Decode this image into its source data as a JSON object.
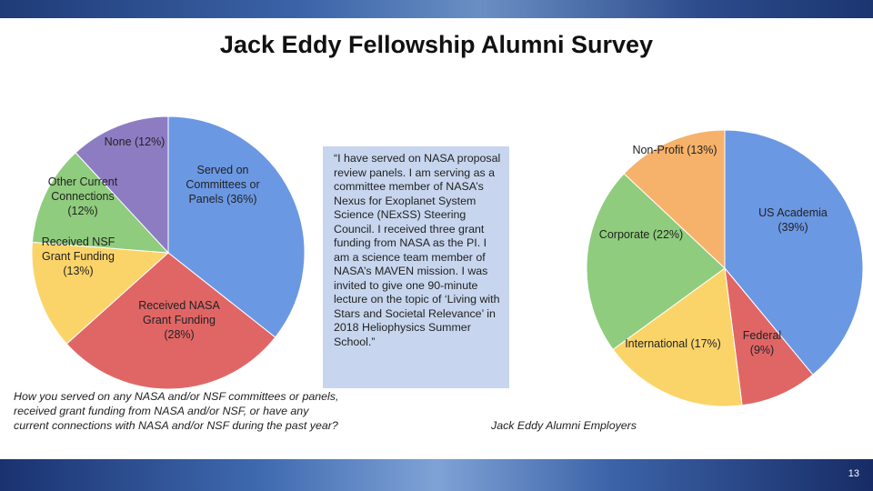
{
  "slide": {
    "title": "Jack Eddy Fellowship Alumni Survey",
    "page_number": "13"
  },
  "quote": {
    "text": "“I have served on NASA proposal review panels. I am serving as a committee member of NASA’s Nexus for Exoplanet System Science (NExSS) Steering Council. I received three grant funding from NASA as the PI. I am a science team member of NASA’s MAVEN mission. I was invited to give one 90-minute lecture on the topic of ‘Living with Stars and Societal Relevance’ in 2018 Heliophysics Summer School.”"
  },
  "chart_data": [
    {
      "type": "pie",
      "title": "",
      "caption_lines": [
        "How you served on any NASA and/or NSF committees or panels,",
        "received grant funding from NASA and/or NSF, or have any",
        "current connections with NASA and/or NSF during the past year?"
      ],
      "slices": [
        {
          "label_lines": [
            "Served on",
            "Committees or",
            "Panels (36%)"
          ],
          "value": 36,
          "color": "#6b98e3"
        },
        {
          "label_lines": [
            "Received NASA",
            "Grant Funding",
            "(28%)"
          ],
          "value": 28,
          "color": "#e06666"
        },
        {
          "label_lines": [
            "Received NSF",
            "Grant Funding",
            "(13%)"
          ],
          "value": 13,
          "color": "#fbd469"
        },
        {
          "label_lines": [
            "Other Current",
            "Connections",
            "(12%)"
          ],
          "value": 12,
          "color": "#8fcc7d"
        },
        {
          "label_lines": [
            "None (12%)"
          ],
          "value": 12,
          "color": "#8e7cc3"
        }
      ]
    },
    {
      "type": "pie",
      "title": "",
      "caption_lines": [
        "Jack Eddy Alumni Employers"
      ],
      "slices": [
        {
          "label_lines": [
            "US Academia",
            "(39%)"
          ],
          "value": 39,
          "color": "#6b98e3"
        },
        {
          "label_lines": [
            "Federal",
            "(9%)"
          ],
          "value": 9,
          "color": "#e06666"
        },
        {
          "label_lines": [
            "International (17%)"
          ],
          "value": 17,
          "color": "#fbd469"
        },
        {
          "label_lines": [
            "Corporate (22%)"
          ],
          "value": 22,
          "color": "#8fcc7d"
        },
        {
          "label_lines": [
            "Non-Profit (13%)"
          ],
          "value": 13,
          "color": "#f6b26b"
        }
      ]
    }
  ]
}
